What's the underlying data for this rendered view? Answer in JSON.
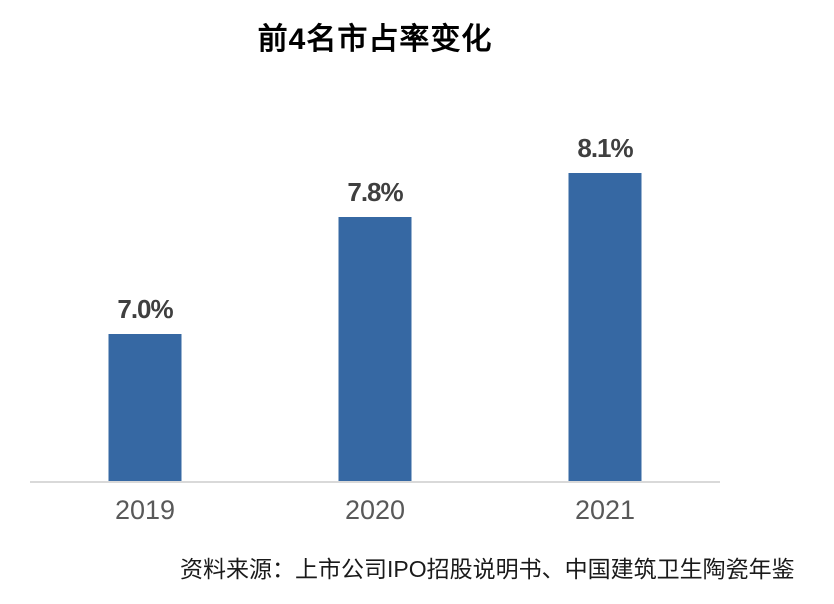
{
  "title": "前4名市占率变化",
  "source_note": "资料来源：上市公司IPO招股说明书、中国建筑卫生陶瓷年鉴",
  "colors": {
    "bar": "#3668A3",
    "axis_line": "#D9D9D9",
    "value_label": "#3F3F3F",
    "tick_label": "#595959",
    "title": "#000000",
    "source": "#1A1A1A",
    "background": "#FFFFFF"
  },
  "chart_data": {
    "type": "bar",
    "title": "前4名市占率变化",
    "categories": [
      "2019",
      "2020",
      "2021"
    ],
    "values": [
      7.0,
      7.8,
      8.1
    ],
    "value_labels": [
      "7.0%",
      "7.8%",
      "8.1%"
    ],
    "unit": "%",
    "xlabel": "",
    "ylabel": "",
    "ylim": [
      6.0,
      8.6
    ],
    "grid": false,
    "legend": false,
    "bar_color": "#3668A3",
    "source": "资料来源：上市公司IPO招股说明书、中国建筑卫生陶瓷年鉴"
  }
}
